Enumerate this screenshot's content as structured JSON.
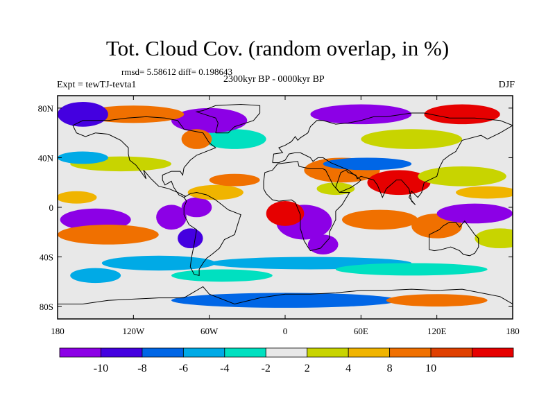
{
  "title": "Tot. Cloud Cov. (random overlap, in %)",
  "stats": "rmsd= 5.58612 diff= 0.198643",
  "period": "2300kyr BP - 0000kyr BP",
  "experiment": "Expt = tewTJ-tevta1",
  "season": "DJF",
  "map": {
    "projection": "cylindrical equidistant",
    "lon_range": [
      -180,
      180
    ],
    "lat_range": [
      -90,
      90
    ],
    "background_color": "#e8e8e8",
    "x_ticks": [
      {
        "lon": -180,
        "label": "180"
      },
      {
        "lon": -120,
        "label": "120W"
      },
      {
        "lon": -60,
        "label": "60W"
      },
      {
        "lon": 0,
        "label": "0"
      },
      {
        "lon": 60,
        "label": "60E"
      },
      {
        "lon": 120,
        "label": "120E"
      },
      {
        "lon": 180,
        "label": "180"
      }
    ],
    "y_ticks": [
      {
        "lat": 80,
        "label": "80N"
      },
      {
        "lat": 40,
        "label": "40N"
      },
      {
        "lat": 0,
        "label": "0"
      },
      {
        "lat": -40,
        "label": "40S"
      },
      {
        "lat": -80,
        "label": "80S"
      }
    ],
    "anomaly_patches": [
      {
        "lon": -150,
        "lat": -10,
        "rlon": 28,
        "rlat": 9,
        "level": -12
      },
      {
        "lon": -140,
        "lat": -22,
        "rlon": 40,
        "rlat": 8,
        "level": 8
      },
      {
        "lon": -165,
        "lat": 8,
        "rlon": 16,
        "rlat": 5,
        "level": 5
      },
      {
        "lon": -130,
        "lat": 35,
        "rlon": 40,
        "rlat": 6,
        "level": 3
      },
      {
        "lon": -90,
        "lat": -8,
        "rlon": 12,
        "rlat": 10,
        "level": -10
      },
      {
        "lon": -75,
        "lat": -25,
        "rlon": 10,
        "rlat": 8,
        "level": -8
      },
      {
        "lon": -70,
        "lat": 0,
        "rlon": 12,
        "rlat": 8,
        "level": -12
      },
      {
        "lon": -55,
        "lat": 12,
        "rlon": 22,
        "rlat": 6,
        "level": 5
      },
      {
        "lon": -100,
        "lat": -45,
        "rlon": 45,
        "rlat": 6,
        "level": -4
      },
      {
        "lon": -50,
        "lat": -55,
        "rlon": 40,
        "rlat": 5,
        "level": -3
      },
      {
        "lon": -40,
        "lat": 22,
        "rlon": 20,
        "rlat": 5,
        "level": 8
      },
      {
        "lon": 15,
        "lat": -12,
        "rlon": 22,
        "rlat": 14,
        "level": -12
      },
      {
        "lon": 30,
        "lat": -30,
        "rlon": 12,
        "rlat": 8,
        "level": -10
      },
      {
        "lon": 0,
        "lat": -5,
        "rlon": 15,
        "rlat": 10,
        "level": 10
      },
      {
        "lon": 45,
        "lat": 30,
        "rlon": 30,
        "rlat": 10,
        "level": 8
      },
      {
        "lon": 65,
        "lat": 35,
        "rlon": 35,
        "rlat": 5,
        "level": -6
      },
      {
        "lon": 90,
        "lat": 20,
        "rlon": 25,
        "rlat": 10,
        "level": 10
      },
      {
        "lon": 75,
        "lat": -10,
        "rlon": 30,
        "rlat": 8,
        "level": 8
      },
      {
        "lon": 120,
        "lat": -15,
        "rlon": 20,
        "rlat": 10,
        "level": 8
      },
      {
        "lon": 150,
        "lat": -5,
        "rlon": 30,
        "rlat": 8,
        "level": -12
      },
      {
        "lon": 140,
        "lat": 25,
        "rlon": 35,
        "rlat": 8,
        "level": 3
      },
      {
        "lon": 160,
        "lat": 12,
        "rlon": 25,
        "rlat": 5,
        "level": 5
      },
      {
        "lon": 20,
        "lat": -45,
        "rlon": 80,
        "rlat": 5,
        "level": -4
      },
      {
        "lon": 100,
        "lat": -50,
        "rlon": 60,
        "rlat": 5,
        "level": -3
      },
      {
        "lon": -40,
        "lat": 55,
        "rlon": 25,
        "rlat": 8,
        "level": -3
      },
      {
        "lon": -60,
        "lat": 70,
        "rlon": 30,
        "rlat": 10,
        "level": -12
      },
      {
        "lon": -70,
        "lat": 55,
        "rlon": 12,
        "rlat": 8,
        "level": 8
      },
      {
        "lon": -120,
        "lat": 75,
        "rlon": 40,
        "rlat": 7,
        "level": 8
      },
      {
        "lon": 60,
        "lat": 75,
        "rlon": 40,
        "rlat": 8,
        "level": -10
      },
      {
        "lon": 100,
        "lat": 55,
        "rlon": 40,
        "rlat": 8,
        "level": 3
      },
      {
        "lon": 140,
        "lat": 75,
        "rlon": 30,
        "rlat": 8,
        "level": 10
      },
      {
        "lon": -160,
        "lat": 75,
        "rlon": 20,
        "rlat": 10,
        "level": -8
      },
      {
        "lon": 0,
        "lat": -75,
        "rlon": 90,
        "rlat": 6,
        "level": -6
      },
      {
        "lon": 120,
        "lat": -75,
        "rlon": 40,
        "rlat": 5,
        "level": 8
      },
      {
        "lon": -150,
        "lat": -55,
        "rlon": 20,
        "rlat": 6,
        "level": -4
      },
      {
        "lon": -160,
        "lat": 40,
        "rlon": 20,
        "rlat": 5,
        "level": -4
      },
      {
        "lon": 40,
        "lat": 15,
        "rlon": 15,
        "rlat": 5,
        "level": 3
      },
      {
        "lon": 170,
        "lat": -25,
        "rlon": 20,
        "rlat": 8,
        "level": 3
      }
    ],
    "land_outlines": [
      {
        "name": "north-america",
        "points": [
          [
            -168,
            66
          ],
          [
            -160,
            70
          ],
          [
            -140,
            70
          ],
          [
            -125,
            72
          ],
          [
            -110,
            73
          ],
          [
            -95,
            72
          ],
          [
            -85,
            70
          ],
          [
            -80,
            63
          ],
          [
            -75,
            62
          ],
          [
            -65,
            60
          ],
          [
            -60,
            52
          ],
          [
            -55,
            48
          ],
          [
            -65,
            44
          ],
          [
            -70,
            42
          ],
          [
            -75,
            38
          ],
          [
            -80,
            32
          ],
          [
            -81,
            26
          ],
          [
            -83,
            29
          ],
          [
            -90,
            29
          ],
          [
            -97,
            26
          ],
          [
            -97,
            22
          ],
          [
            -95,
            18
          ],
          [
            -90,
            21
          ],
          [
            -88,
            16
          ],
          [
            -84,
            10
          ],
          [
            -80,
            8
          ],
          [
            -79,
            9
          ],
          [
            -85,
            12
          ],
          [
            -92,
            15
          ],
          [
            -100,
            17
          ],
          [
            -106,
            23
          ],
          [
            -112,
            30
          ],
          [
            -110,
            23
          ],
          [
            -115,
            30
          ],
          [
            -118,
            34
          ],
          [
            -123,
            38
          ],
          [
            -124,
            43
          ],
          [
            -124,
            48
          ],
          [
            -130,
            54
          ],
          [
            -140,
            59
          ],
          [
            -150,
            60
          ],
          [
            -158,
            57
          ],
          [
            -165,
            60
          ],
          [
            -168,
            66
          ]
        ]
      },
      {
        "name": "greenland",
        "points": [
          [
            -55,
            60
          ],
          [
            -45,
            60
          ],
          [
            -40,
            65
          ],
          [
            -25,
            70
          ],
          [
            -20,
            76
          ],
          [
            -20,
            82
          ],
          [
            -35,
            83
          ],
          [
            -55,
            82
          ],
          [
            -65,
            78
          ],
          [
            -70,
            77
          ],
          [
            -55,
            72
          ],
          [
            -53,
            68
          ],
          [
            -55,
            60
          ]
        ]
      },
      {
        "name": "south-america",
        "points": [
          [
            -80,
            8
          ],
          [
            -75,
            11
          ],
          [
            -70,
            12
          ],
          [
            -62,
            10
          ],
          [
            -55,
            6
          ],
          [
            -50,
            2
          ],
          [
            -45,
            -2
          ],
          [
            -35,
            -6
          ],
          [
            -37,
            -12
          ],
          [
            -40,
            -22
          ],
          [
            -48,
            -26
          ],
          [
            -52,
            -33
          ],
          [
            -58,
            -38
          ],
          [
            -62,
            -41
          ],
          [
            -65,
            -45
          ],
          [
            -68,
            -50
          ],
          [
            -68,
            -55
          ],
          [
            -72,
            -54
          ],
          [
            -75,
            -48
          ],
          [
            -74,
            -40
          ],
          [
            -72,
            -30
          ],
          [
            -70,
            -18
          ],
          [
            -76,
            -14
          ],
          [
            -80,
            -6
          ],
          [
            -80,
            0
          ],
          [
            -78,
            5
          ],
          [
            -80,
            8
          ]
        ]
      },
      {
        "name": "eurasia",
        "points": [
          [
            -10,
            36
          ],
          [
            -9,
            43
          ],
          [
            -2,
            44
          ],
          [
            -5,
            48
          ],
          [
            0,
            50
          ],
          [
            5,
            53
          ],
          [
            8,
            57
          ],
          [
            10,
            54
          ],
          [
            12,
            56
          ],
          [
            18,
            60
          ],
          [
            20,
            65
          ],
          [
            25,
            70
          ],
          [
            30,
            70
          ],
          [
            40,
            67
          ],
          [
            50,
            68
          ],
          [
            60,
            70
          ],
          [
            70,
            73
          ],
          [
            80,
            73
          ],
          [
            100,
            76
          ],
          [
            110,
            76
          ],
          [
            130,
            72
          ],
          [
            150,
            72
          ],
          [
            170,
            70
          ],
          [
            180,
            66
          ],
          [
            170,
            60
          ],
          [
            160,
            55
          ],
          [
            155,
            58
          ],
          [
            140,
            54
          ],
          [
            135,
            45
          ],
          [
            130,
            42
          ],
          [
            125,
            38
          ],
          [
            122,
            32
          ],
          [
            120,
            25
          ],
          [
            110,
            20
          ],
          [
            108,
            12
          ],
          [
            105,
            8
          ],
          [
            100,
            13
          ],
          [
            98,
            8
          ],
          [
            103,
            2
          ],
          [
            100,
            5
          ],
          [
            98,
            15
          ],
          [
            92,
            22
          ],
          [
            88,
            22
          ],
          [
            80,
            15
          ],
          [
            77,
            8
          ],
          [
            73,
            18
          ],
          [
            70,
            22
          ],
          [
            60,
            25
          ],
          [
            57,
            23
          ],
          [
            56,
            26
          ],
          [
            50,
            28
          ],
          [
            48,
            30
          ],
          [
            44,
            28
          ],
          [
            40,
            16
          ],
          [
            43,
            12
          ],
          [
            52,
            16
          ],
          [
            58,
            20
          ],
          [
            60,
            22
          ],
          [
            55,
            26
          ],
          [
            50,
            30
          ],
          [
            36,
            36
          ],
          [
            30,
            40
          ],
          [
            26,
            40
          ],
          [
            22,
            37
          ],
          [
            20,
            40
          ],
          [
            12,
            44
          ],
          [
            8,
            44
          ],
          [
            3,
            43
          ],
          [
            0,
            38
          ],
          [
            -5,
            36
          ],
          [
            -10,
            36
          ]
        ]
      },
      {
        "name": "africa",
        "points": [
          [
            -17,
            21
          ],
          [
            -16,
            28
          ],
          [
            -10,
            30
          ],
          [
            -6,
            35
          ],
          [
            10,
            37
          ],
          [
            11,
            33
          ],
          [
            20,
            31
          ],
          [
            30,
            31
          ],
          [
            32,
            30
          ],
          [
            35,
            24
          ],
          [
            38,
            18
          ],
          [
            43,
            12
          ],
          [
            51,
            12
          ],
          [
            45,
            2
          ],
          [
            40,
            -3
          ],
          [
            40,
            -10
          ],
          [
            35,
            -20
          ],
          [
            35,
            -25
          ],
          [
            28,
            -33
          ],
          [
            20,
            -35
          ],
          [
            18,
            -32
          ],
          [
            15,
            -27
          ],
          [
            12,
            -17
          ],
          [
            12,
            -6
          ],
          [
            8,
            4
          ],
          [
            5,
            6
          ],
          [
            -5,
            5
          ],
          [
            -10,
            6
          ],
          [
            -15,
            11
          ],
          [
            -17,
            15
          ],
          [
            -17,
            21
          ]
        ]
      },
      {
        "name": "australia",
        "points": [
          [
            114,
            -22
          ],
          [
            114,
            -34
          ],
          [
            118,
            -35
          ],
          [
            124,
            -34
          ],
          [
            131,
            -32
          ],
          [
            138,
            -35
          ],
          [
            141,
            -38
          ],
          [
            146,
            -39
          ],
          [
            150,
            -37
          ],
          [
            153,
            -32
          ],
          [
            153,
            -25
          ],
          [
            150,
            -22
          ],
          [
            145,
            -15
          ],
          [
            142,
            -11
          ],
          [
            138,
            -16
          ],
          [
            135,
            -12
          ],
          [
            130,
            -12
          ],
          [
            125,
            -15
          ],
          [
            122,
            -18
          ],
          [
            114,
            -22
          ]
        ]
      },
      {
        "name": "antarctica",
        "points": [
          [
            -180,
            -78
          ],
          [
            -160,
            -78
          ],
          [
            -140,
            -75
          ],
          [
            -120,
            -74
          ],
          [
            -100,
            -73
          ],
          [
            -80,
            -73
          ],
          [
            -65,
            -64
          ],
          [
            -60,
            -70
          ],
          [
            -40,
            -78
          ],
          [
            -20,
            -73
          ],
          [
            0,
            -70
          ],
          [
            20,
            -70
          ],
          [
            40,
            -69
          ],
          [
            60,
            -67
          ],
          [
            80,
            -67
          ],
          [
            100,
            -66
          ],
          [
            120,
            -67
          ],
          [
            140,
            -66
          ],
          [
            160,
            -70
          ],
          [
            170,
            -72
          ],
          [
            180,
            -78
          ]
        ]
      }
    ]
  },
  "colorbar": {
    "colors": [
      "#8c00e6",
      "#4400e0",
      "#0066e6",
      "#00aae6",
      "#00e0c0",
      "#e8e8e8",
      "#c8d400",
      "#f0b400",
      "#f07000",
      "#e04000",
      "#e60000"
    ],
    "labels": [
      "-10",
      "-8",
      "-6",
      "-4",
      "-2",
      "2",
      "4",
      "8",
      "10"
    ]
  }
}
